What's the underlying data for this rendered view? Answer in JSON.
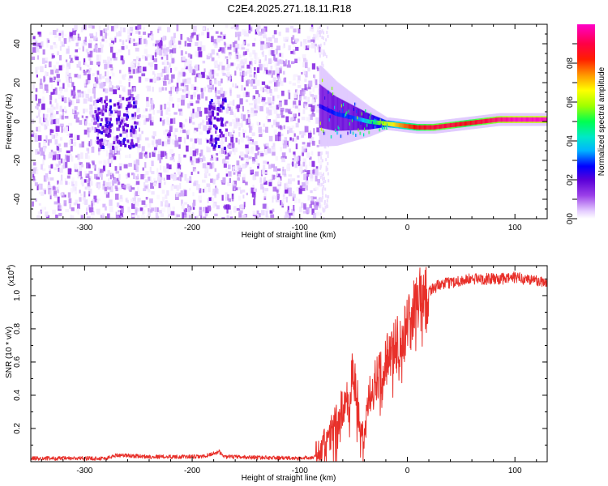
{
  "title": "C2E4.2025.271.18.11.R18",
  "chart_data": [
    {
      "type": "heatmap",
      "name": "spectrogram",
      "xlabel": "Height of straight line (km)",
      "ylabel": "Frequency (Hz)",
      "xlim": [
        -350,
        130
      ],
      "ylim": [
        -50,
        50
      ],
      "xticks": [
        -300,
        -200,
        -100,
        0,
        100
      ],
      "yticks": [
        -40,
        -20,
        0,
        20,
        40
      ],
      "colorbar": {
        "label": "Normalized spectral amplitude",
        "range": [
          0,
          1
        ],
        "ticks": [
          0.0,
          0.2,
          0.4,
          0.6,
          0.8
        ],
        "colors": [
          "#ffffff",
          "#e0c8ff",
          "#8a2be2",
          "#5a00d8",
          "#0000ff",
          "#00c8ff",
          "#00ff64",
          "#b4ff00",
          "#ffff00",
          "#ff8c00",
          "#ff0000",
          "#ff0050",
          "#ff00c8"
        ]
      },
      "regions": [
        {
          "name": "noise",
          "x_range": [
            -350,
            -82
          ],
          "f_range": [
            -50,
            50
          ],
          "amplitude_range": [
            0.02,
            0.2
          ]
        },
        {
          "name": "signal",
          "x_range": [
            -82,
            130
          ],
          "frequency_hz": [
            8,
            4,
            2,
            0,
            -1,
            -2,
            -3,
            -3,
            -2,
            -1,
            0,
            1,
            1,
            1,
            1
          ],
          "amplitude": [
            0.3,
            0.35,
            0.35,
            0.45,
            0.6,
            0.75,
            0.85,
            0.9,
            0.9,
            0.85,
            0.9,
            0.95,
            1.0,
            1.0,
            1.0
          ]
        }
      ]
    },
    {
      "type": "line",
      "name": "snr",
      "xlabel": "Height of straight line (km)",
      "ylabel": "SNR (10 * v/v)",
      "scale_label_base": "(x10",
      "scale_label_exp": "4",
      "scale_label_end": ")",
      "xlim": [
        -350,
        130
      ],
      "ylim": [
        0,
        1.18
      ],
      "xticks": [
        -300,
        -200,
        -100,
        0,
        100
      ],
      "yticks": [
        0.2,
        0.4,
        0.6,
        0.8,
        1.0
      ],
      "color": "#e8302a",
      "series": [
        {
          "name": "SNR",
          "x": [
            -350,
            -280,
            -270,
            -240,
            -190,
            -175,
            -170,
            -100,
            -85,
            -75,
            -65,
            -55,
            -50,
            -45,
            -40,
            -35,
            -30,
            -25,
            -20,
            -15,
            -10,
            -5,
            0,
            5,
            10,
            15,
            20,
            25,
            30,
            40,
            50,
            60,
            70,
            80,
            90,
            100,
            110,
            120,
            130
          ],
          "y": [
            0.02,
            0.02,
            0.04,
            0.03,
            0.03,
            0.06,
            0.03,
            0.02,
            0.03,
            0.12,
            0.25,
            0.4,
            0.55,
            0.3,
            0.12,
            0.4,
            0.5,
            0.55,
            0.62,
            0.65,
            0.72,
            0.72,
            0.82,
            0.9,
            0.96,
            1.0,
            1.03,
            1.05,
            1.06,
            1.08,
            1.09,
            1.1,
            1.1,
            1.1,
            1.1,
            1.11,
            1.1,
            1.09,
            1.08
          ]
        }
      ]
    }
  ]
}
